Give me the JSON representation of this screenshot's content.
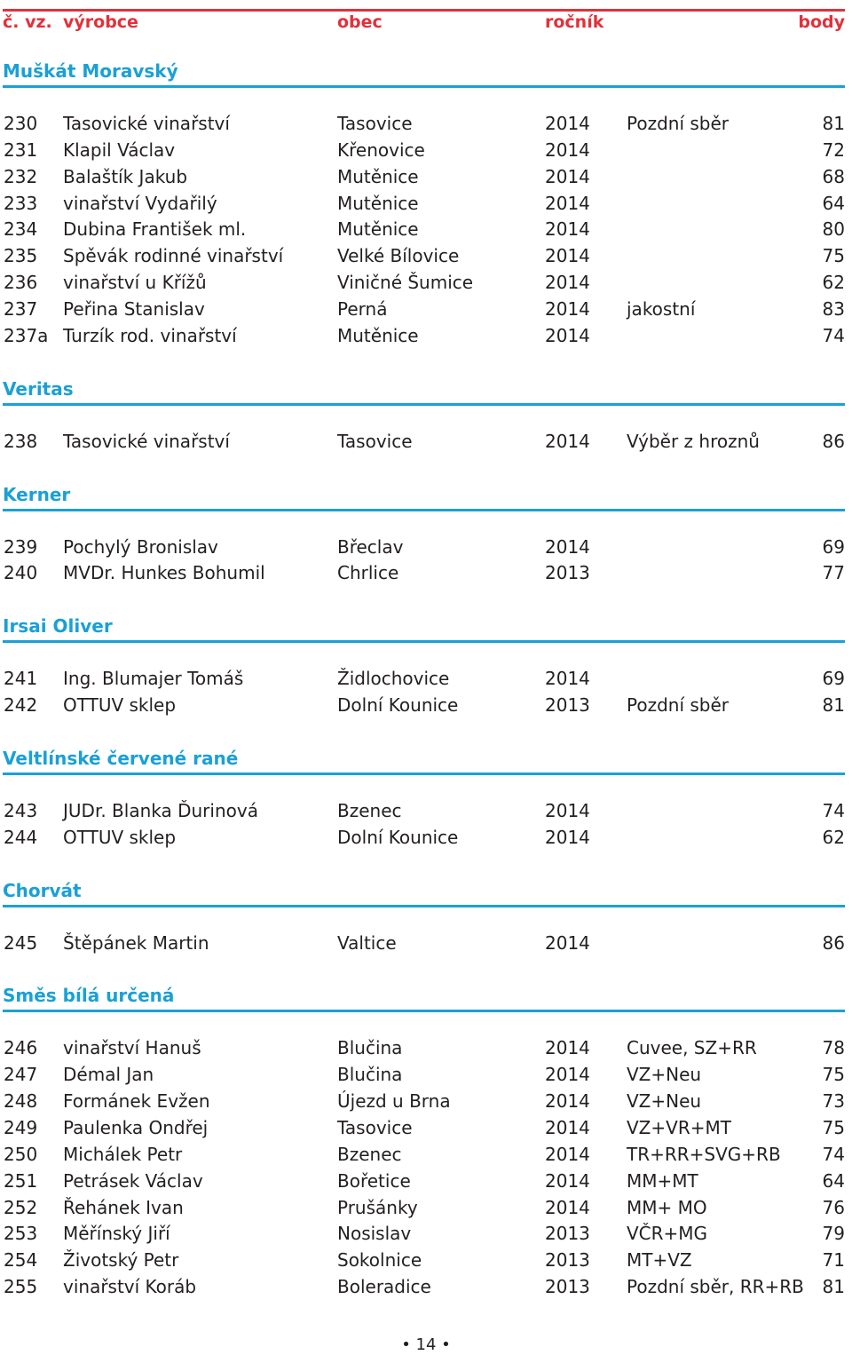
{
  "header": {
    "col_no": "č. vz.",
    "col_producer": "výrobce",
    "col_town": "obec",
    "col_year": "ročník",
    "col_points": "body"
  },
  "colors": {
    "header_red": "#e3303a",
    "section_blue": "#1aa0d7",
    "text": "#231f20"
  },
  "sections": [
    {
      "title": "Muškát Moravský",
      "rows": [
        [
          "230",
          "Tasovické vinařství",
          "Tasovice",
          "2014",
          "Pozdní sběr",
          "81"
        ],
        [
          "231",
          "Klapil Václav",
          "Křenovice",
          "2014",
          "",
          "72"
        ],
        [
          "232",
          "Balaštík Jakub",
          "Mutěnice",
          "2014",
          "",
          "68"
        ],
        [
          "233",
          "vinařství Vydařilý",
          "Mutěnice",
          "2014",
          "",
          "64"
        ],
        [
          "234",
          "Dubina František ml.",
          "Mutěnice",
          "2014",
          "",
          "80"
        ],
        [
          "235",
          "Spěvák rodinné vinařství",
          "Velké Bílovice",
          "2014",
          "",
          "75"
        ],
        [
          "236",
          "vinařství u Křížů",
          "Viničné Šumice",
          "2014",
          "",
          "62"
        ],
        [
          "237",
          "Peřina Stanislav",
          "Perná",
          "2014",
          "jakostní",
          "83"
        ],
        [
          "237a",
          "Turzík rod. vinařství",
          "Mutěnice",
          "2014",
          "",
          "74"
        ]
      ]
    },
    {
      "title": "Veritas",
      "rows": [
        [
          "238",
          "Tasovické vinařství",
          "Tasovice",
          "2014",
          "Výběr z hroznů",
          "86"
        ]
      ]
    },
    {
      "title": "Kerner",
      "rows": [
        [
          "239",
          "Pochylý Bronislav",
          "Břeclav",
          "2014",
          "",
          "69"
        ],
        [
          "240",
          "MVDr. Hunkes Bohumil",
          "Chrlice",
          "2013",
          "",
          "77"
        ]
      ]
    },
    {
      "title": "Irsai Oliver",
      "rows": [
        [
          "241",
          "Ing. Blumajer Tomáš",
          "Židlochovice",
          "2014",
          "",
          "69"
        ],
        [
          "242",
          "OTTUV sklep",
          "Dolní Kounice",
          "2013",
          "Pozdní sběr",
          "81"
        ]
      ]
    },
    {
      "title": "Veltlínské červené rané",
      "rows": [
        [
          "243",
          "JUDr. Blanka Ďurinová",
          "Bzenec",
          "2014",
          "",
          "74"
        ],
        [
          "244",
          "OTTUV sklep",
          "Dolní Kounice",
          "2014",
          "",
          "62"
        ]
      ]
    },
    {
      "title": "Chorvát",
      "rows": [
        [
          "245",
          "Štěpánek Martin",
          "Valtice",
          "2014",
          "",
          "86"
        ]
      ]
    },
    {
      "title": "Směs bílá určená",
      "rows": [
        [
          "246",
          "vinařství Hanuš",
          "Blučina",
          "2014",
          "Cuvee, SZ+RR",
          "78"
        ],
        [
          "247",
          "Démal Jan",
          "Blučina",
          "2014",
          "VZ+Neu",
          "75"
        ],
        [
          "248",
          "Formánek Evžen",
          "Újezd u Brna",
          "2014",
          "VZ+Neu",
          "73"
        ],
        [
          "249",
          "Paulenka Ondřej",
          "Tasovice",
          "2014",
          "VZ+VR+MT",
          "75"
        ],
        [
          "250",
          "Michálek Petr",
          "Bzenec",
          "2014",
          "TR+RR+SVG+RB",
          "74"
        ],
        [
          "251",
          "Petrásek Václav",
          "Bořetice",
          "2014",
          "MM+MT",
          "64"
        ],
        [
          "252",
          "Řehánek Ivan",
          "Prušánky",
          "2014",
          "MM+ MO",
          "76"
        ],
        [
          "253",
          "Měřínský Jiří",
          "Nosislav",
          "2013",
          "VČR+MG",
          "79"
        ],
        [
          "254",
          "Životský Petr",
          "Sokolnice",
          "2013",
          "MT+VZ",
          "71"
        ],
        [
          "255",
          "vinařství Koráb",
          "Boleradice",
          "2013",
          "Pozdní sběr, RR+RB",
          "81"
        ]
      ]
    }
  ],
  "footer": {
    "page_number": "• 14 •"
  }
}
